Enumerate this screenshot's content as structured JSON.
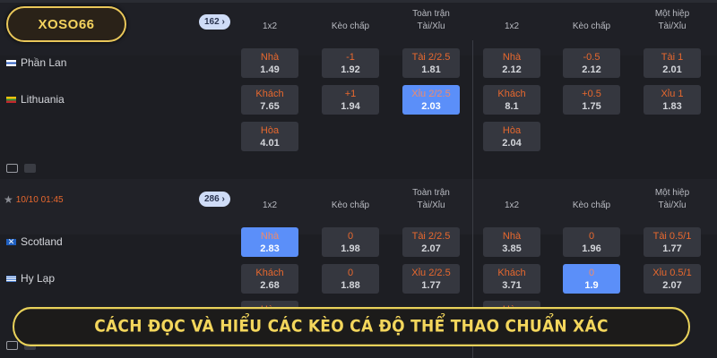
{
  "logo": {
    "text": "XOSO66"
  },
  "banner": {
    "text": "CÁCH ĐỌC VÀ HIỂU CÁC KÈO CÁ ĐỘ THỂ THAO CHUẨN XÁC",
    "border_color": "#e9d25a"
  },
  "colors": {
    "accent": "#e8682e",
    "selected": "#5b8ff9",
    "cell": "#35373f"
  },
  "columns": {
    "full_label": "Toàn trận",
    "half_label": "Một hiệp",
    "headers": [
      "1x2",
      "Kèo chấp",
      "Tài/Xỉu",
      "1x2",
      "Kèo chấp",
      "Tài/Xỉu"
    ]
  },
  "matches": [
    {
      "time": "",
      "count": "162 ›",
      "teams": [
        {
          "name": "Phần Lan",
          "flag": "finland"
        },
        {
          "name": "Lithuania",
          "flag": "lithuania"
        }
      ],
      "rows": [
        [
          {
            "l": "Nhà",
            "v": "1.49"
          },
          {
            "l": "-1",
            "v": "1.92"
          },
          {
            "l": "Tài 2/2.5",
            "v": "1.81"
          },
          {
            "l": "Nhà",
            "v": "2.12"
          },
          {
            "l": "-0.5",
            "v": "2.12"
          },
          {
            "l": "Tài 1",
            "v": "2.01"
          }
        ],
        [
          {
            "l": "Khách",
            "v": "7.65"
          },
          {
            "l": "+1",
            "v": "1.94"
          },
          {
            "l": "Xỉu 2/2.5",
            "v": "2.03",
            "sel": true
          },
          {
            "l": "Khách",
            "v": "8.1"
          },
          {
            "l": "+0.5",
            "v": "1.75"
          },
          {
            "l": "Xỉu 1",
            "v": "1.83"
          }
        ],
        [
          {
            "l": "Hòa",
            "v": "4.01"
          },
          null,
          null,
          {
            "l": "Hòa",
            "v": "2.04"
          },
          null,
          null
        ]
      ]
    },
    {
      "time": "10/10 01:45",
      "count": "286 ›",
      "teams": [
        {
          "name": "Scotland",
          "flag": "scotland"
        },
        {
          "name": "Hy Lạp",
          "flag": "greece"
        }
      ],
      "rows": [
        [
          {
            "l": "Nhà",
            "v": "2.83",
            "sel": true
          },
          {
            "l": "0",
            "v": "1.98"
          },
          {
            "l": "Tài 2/2.5",
            "v": "2.07"
          },
          {
            "l": "Nhà",
            "v": "3.85"
          },
          {
            "l": "0",
            "v": "1.96"
          },
          {
            "l": "Tài 0.5/1",
            "v": "1.77"
          }
        ],
        [
          {
            "l": "Khách",
            "v": "2.68"
          },
          {
            "l": "0",
            "v": "1.88"
          },
          {
            "l": "Xỉu 2/2.5",
            "v": "1.77"
          },
          {
            "l": "Khách",
            "v": "3.71"
          },
          {
            "l": "0",
            "v": "1.9",
            "sel": true
          },
          {
            "l": "Xỉu 0.5/1",
            "v": "2.07"
          }
        ],
        [
          {
            "l": "Hòa",
            "v": ""
          },
          null,
          null,
          {
            "l": "Hòa",
            "v": ""
          },
          null,
          null
        ]
      ]
    }
  ]
}
